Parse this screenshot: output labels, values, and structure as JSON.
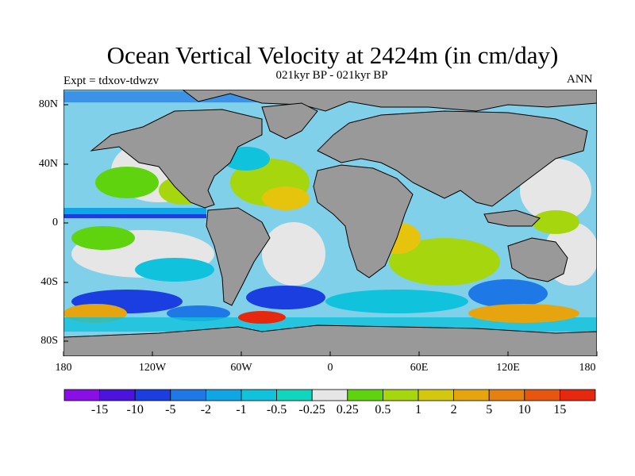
{
  "figure": {
    "title": "Ocean Vertical Velocity at 2424m (in cm/day)",
    "subtitle": "021kyr BP - 021kyr BP",
    "left_label": "Expt = tdxov-tdwzv",
    "right_label": "ANN"
  },
  "map": {
    "projection": "cylindrical equidistant",
    "lon_range": [
      -180,
      180
    ],
    "lat_range": [
      -90,
      90
    ],
    "land_color": "#999999",
    "ocean_fill": "colored contour field",
    "lat_ticks": [
      "80N",
      "40N",
      "0",
      "40S",
      "80S"
    ],
    "lon_ticks": [
      "180",
      "120W",
      "60W",
      "0",
      "60E",
      "120E",
      "180"
    ]
  },
  "colorbar": {
    "labels": [
      "-15",
      "-10",
      "-5",
      "-2",
      "-1",
      "-0.5",
      "-0.25",
      "0.25",
      "0.5",
      "1",
      "2",
      "5",
      "10",
      "15"
    ],
    "colors": [
      "#8a0ee6",
      "#4a14dc",
      "#1a3ee0",
      "#1e78e6",
      "#10a6e6",
      "#10c2dc",
      "#10d6be",
      "#e6e6e6",
      "#5fd40e",
      "#a6d60e",
      "#d4c80e",
      "#e6a40e",
      "#e6800e",
      "#e6560e",
      "#e6280e"
    ]
  }
}
